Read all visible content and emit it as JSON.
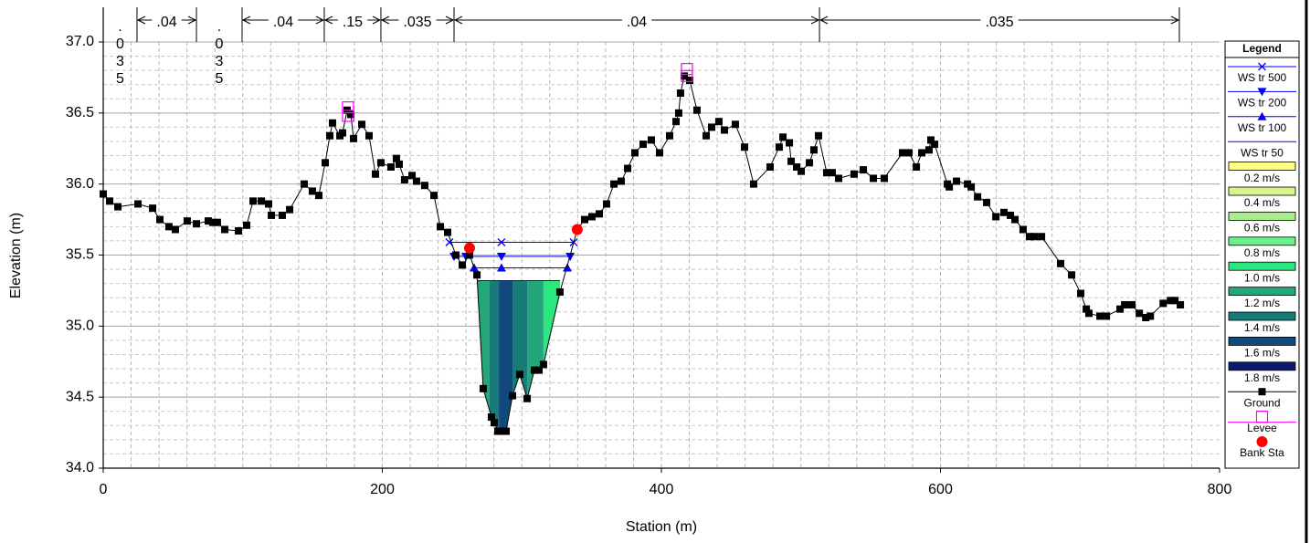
{
  "chart_data": {
    "type": "cross_section",
    "xlabel": "Station (m)",
    "ylabel": "Elevation (m)",
    "xlim": [
      0,
      800
    ],
    "ylim": [
      34,
      37
    ],
    "xticks": [
      0,
      200,
      400,
      600,
      800
    ],
    "yticks": [
      {
        "value": 34,
        "label": "34.0"
      },
      34.5,
      {
        "value": 35,
        "label": "35.0"
      },
      35.5,
      {
        "value": 36,
        "label": "36.0"
      },
      36.5,
      {
        "value": 37,
        "label": "37.0"
      }
    ],
    "xminor": 20,
    "yminor": 0.1,
    "grid": true,
    "legend_title": "Legend",
    "legend_loc": "right",
    "series": [
      {
        "name": "WS tr 500",
        "color": "#0000ff",
        "marker": "x",
        "x": [
          248.1,
          285.4,
          337.2
        ],
        "values": [
          35.59,
          35.59,
          35.59
        ]
      },
      {
        "name": "WS tr 200",
        "color": "#0000ff",
        "marker": "triangle-down",
        "x": [
          251.4,
          259.9,
          285.4,
          334.6
        ],
        "values": [
          35.49,
          35.49,
          35.49,
          35.49
        ]
      },
      {
        "name": "WS tr 100",
        "color": "#0000ff",
        "marker": "triangle-up",
        "x": [
          265.8,
          285.4,
          332.6
        ],
        "values": [
          35.41,
          35.41,
          35.41
        ]
      },
      {
        "name": "WS tr 50",
        "color": "#0000ff",
        "marker": "none",
        "x": [
          267.8,
          327.3
        ],
        "values": [
          35.32,
          35.32
        ]
      },
      {
        "name": "Ground",
        "color": "#000000",
        "marker": "square",
        "line": true,
        "x": [
          0,
          4.6,
          10.5,
          24.9,
          35.4,
          40.6,
          47.1,
          51.7,
          60.2,
          66.8,
          75.3,
          78.6,
          81.8,
          87.1,
          96.9,
          102.8,
          107.4,
          113.3,
          118.5,
          120.5,
          128.3,
          133.6,
          144.0,
          149.9,
          154.5,
          159.1,
          162.4,
          164.3,
          169.6,
          171.5,
          174.8,
          177.4,
          179.4,
          185.3,
          190.5,
          195.1,
          199.0,
          206.2,
          210.1,
          212.1,
          216.0,
          221.3,
          224.5,
          230.4,
          237.0,
          241.6,
          246.8,
          252.7,
          257.3,
          262.5,
          267.8,
          272.3,
          278.2,
          280.2,
          282.8,
          284.8,
          288.7,
          293.3,
          298.5,
          303.8,
          309.0,
          312.3,
          315.5,
          327.3,
          339.7,
          345.0,
          350.2,
          355.5,
          360.7,
          366.0,
          371.2,
          375.8,
          381.0,
          386.9,
          392.8,
          398.7,
          405.9,
          410.5,
          412.4,
          413.7,
          416.4,
          420.3,
          425.5,
          432.1,
          436.0,
          441.2,
          445.2,
          453.0,
          459.6,
          466.1,
          477.9,
          484.4,
          487.1,
          491.7,
          493.0,
          496.9,
          500.2,
          506.1,
          509.3,
          512.6,
          518.5,
          522.4,
          527.0,
          538.1,
          544.7,
          551.9,
          559.7,
          572.8,
          577.4,
          582.7,
          586.6,
          591.8,
          593.1,
          595.8,
          605.0,
          606.3,
          611.5,
          619.4,
          622.0,
          626.6,
          633.1,
          639.7,
          645.5,
          650.1,
          653.4,
          659.2,
          663.8,
          667.1,
          672.4,
          686.1,
          694.0,
          700.5,
          704.5,
          706.4,
          714.3,
          718.9,
          728.7,
          732.0,
          737.2,
          742.5,
          747.1,
          750.4,
          759.6,
          764.8,
          768.0,
          771.9
        ],
        "values": [
          35.93,
          35.88,
          35.84,
          35.86,
          35.83,
          35.75,
          35.7,
          35.68,
          35.74,
          35.72,
          35.74,
          35.73,
          35.73,
          35.68,
          35.67,
          35.71,
          35.88,
          35.88,
          35.86,
          35.78,
          35.78,
          35.82,
          36.0,
          35.95,
          35.92,
          36.15,
          36.34,
          36.43,
          36.34,
          36.36,
          36.52,
          36.49,
          36.32,
          36.42,
          36.34,
          36.07,
          36.15,
          36.12,
          36.18,
          36.14,
          36.03,
          36.06,
          36.02,
          35.99,
          35.92,
          35.7,
          35.66,
          35.5,
          35.43,
          35.5,
          35.36,
          34.56,
          34.36,
          34.32,
          34.26,
          34.26,
          34.26,
          34.51,
          34.66,
          34.49,
          34.69,
          34.69,
          34.73,
          35.24,
          35.68,
          35.75,
          35.77,
          35.79,
          35.86,
          36.0,
          36.02,
          36.11,
          36.22,
          36.28,
          36.31,
          36.22,
          36.34,
          36.44,
          36.5,
          36.64,
          36.76,
          36.73,
          36.52,
          36.34,
          36.4,
          36.44,
          36.38,
          36.42,
          36.26,
          36.0,
          36.12,
          36.26,
          36.33,
          36.29,
          36.16,
          36.12,
          36.09,
          36.15,
          36.24,
          36.34,
          36.08,
          36.08,
          36.04,
          36.07,
          36.1,
          36.04,
          36.04,
          36.22,
          36.22,
          36.12,
          36.22,
          36.24,
          36.31,
          36.28,
          36.0,
          35.98,
          36.02,
          36.0,
          35.98,
          35.91,
          35.87,
          35.77,
          35.8,
          35.78,
          35.75,
          35.68,
          35.63,
          35.63,
          35.63,
          35.44,
          35.36,
          35.23,
          35.12,
          35.09,
          35.07,
          35.07,
          35.12,
          35.15,
          35.15,
          35.09,
          35.06,
          35.07,
          35.16,
          35.18,
          35.18,
          35.15
        ]
      },
      {
        "name": "Levee",
        "color": "#ff00ff",
        "marker": "open-square",
        "line": false,
        "x": [
          175.4,
          175.4,
          418.3,
          418.3
        ],
        "values": [
          36.54,
          36.48,
          36.81,
          36.76
        ]
      },
      {
        "name": "Bank Sta",
        "color": "#ff0000",
        "marker": "circle",
        "line": false,
        "x": [
          262.5,
          339.7
        ],
        "values": [
          35.55,
          35.68
        ]
      }
    ],
    "velocity_legend": [
      {
        "value": 0.2,
        "label": "0.2 m/s",
        "color": "#ffff80"
      },
      {
        "value": 0.4,
        "label": "0.4 m/s",
        "color": "#d6f58a"
      },
      {
        "value": 0.6,
        "label": "0.6 m/s",
        "color": "#a8ee8c"
      },
      {
        "value": 0.8,
        "label": "0.8 m/s",
        "color": "#6cf08c"
      },
      {
        "value": 1.0,
        "label": "1.0 m/s",
        "color": "#2ce680"
      },
      {
        "value": 1.2,
        "label": "1.2 m/s",
        "color": "#22a67a"
      },
      {
        "value": 1.4,
        "label": "1.4 m/s",
        "color": "#177c78"
      },
      {
        "value": 1.6,
        "label": "1.6 m/s",
        "color": "#11487e"
      },
      {
        "value": 1.8,
        "label": "1.8 m/s",
        "color": "#0a1a6e"
      }
    ],
    "velocity_strips": [
      {
        "x": [
          267.8,
          276.9
        ],
        "velocity": 1.2
      },
      {
        "x": [
          276.9,
          283.5
        ],
        "velocity": 1.4
      },
      {
        "x": [
          283.5,
          293.3
        ],
        "velocity": 1.6
      },
      {
        "x": [
          293.3,
          303.8
        ],
        "velocity": 1.4
      },
      {
        "x": [
          303.8,
          315.5
        ],
        "velocity": 1.2
      },
      {
        "x": [
          315.5,
          327.3
        ],
        "velocity": 1.0
      }
    ],
    "water_surface_top": 35.32,
    "mannings_n": [
      {
        "label": ".035",
        "x": [
          0,
          24.2
        ]
      },
      {
        "label": ".04",
        "x": [
          24.2,
          66.8
        ]
      },
      {
        "label": ".035",
        "x": [
          66.8,
          99.5
        ]
      },
      {
        "label": ".04",
        "x": [
          99.5,
          158.4
        ]
      },
      {
        "label": ".15",
        "x": [
          158.4,
          199.0
        ]
      },
      {
        "label": ".035",
        "x": [
          199.0,
          251.4
        ]
      },
      {
        "label": ".04",
        "x": [
          251.4,
          513.3
        ]
      },
      {
        "label": ".035",
        "x": [
          513.3,
          771.2
        ]
      }
    ]
  }
}
